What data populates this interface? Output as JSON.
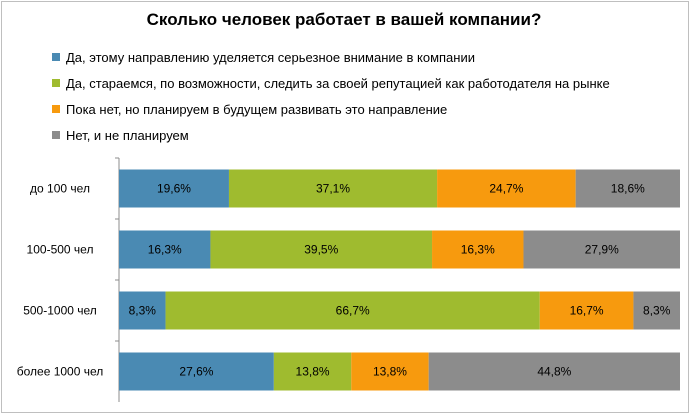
{
  "chart_data": {
    "type": "bar",
    "orientation": "horizontal",
    "stacked": "percent",
    "title": "Сколько человек работает в вашей компании?",
    "legend_position": "top",
    "categories": [
      "до 100 чел",
      "100-500 чел",
      "500-1000 чел",
      "более 1000 чел"
    ],
    "series": [
      {
        "name": "Да, этому направлению  уделяется серьезное внимание в компании",
        "color": "#4a8ab3",
        "values": [
          19.6,
          16.3,
          8.3,
          27.6
        ],
        "labels": [
          "19,6%",
          "16,3%",
          "8,3%",
          "27,6%"
        ]
      },
      {
        "name": "Да, стараемся, по возможности,  следить за своей репутацией как работодателя на рынке",
        "color": "#9fbb2f",
        "values": [
          37.1,
          39.5,
          66.7,
          13.8
        ],
        "labels": [
          "37,1%",
          "39,5%",
          "66,7%",
          "13,8%"
        ]
      },
      {
        "name": "Пока нет, но планируем в будущем развивать это направление",
        "color": "#f79a0e",
        "values": [
          24.7,
          16.3,
          16.7,
          13.8
        ],
        "labels": [
          "24,7%",
          "16,3%",
          "16,7%",
          "13,8%"
        ]
      },
      {
        "name": "Нет, и не планируем",
        "color": "#8c8c8c",
        "values": [
          18.6,
          27.9,
          8.3,
          44.8
        ],
        "labels": [
          "18,6%",
          "27,9%",
          "8,3%",
          "44,8%"
        ]
      }
    ],
    "xlim": [
      0,
      100
    ],
    "grid": false
  }
}
